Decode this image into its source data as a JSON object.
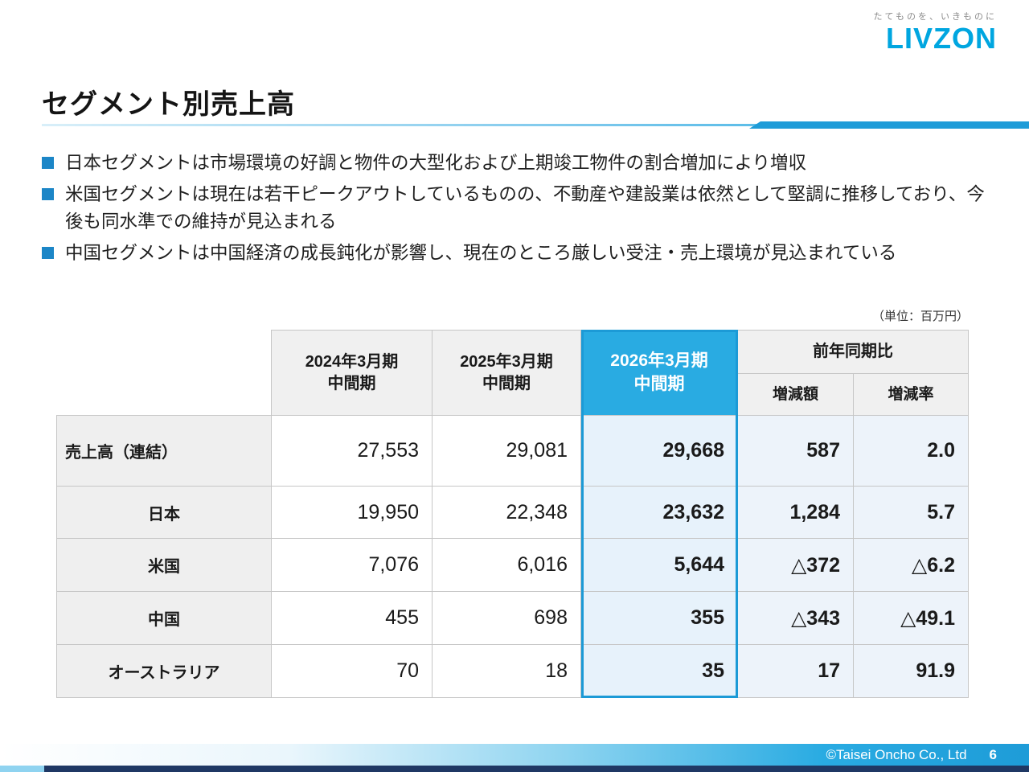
{
  "logo": {
    "tagline": "たてものを、いきものに",
    "brand": "LIVZON"
  },
  "title": "セグメント別売上高",
  "bullets": [
    "日本セグメントは市場環境の好調と物件の大型化および上期竣工物件の割合増加により増収",
    "米国セグメントは現在は若干ピークアウトしているものの、不動産や建設業は依然として堅調に推移しており、今後も同水準での維持が見込まれる",
    "中国セグメントは中国経済の成長鈍化が影響し、現在のところ厳しい受注・売上環境が見込まれている"
  ],
  "unit_note": "（単位：百万円）",
  "table": {
    "headers": {
      "fy2024": "2024年3月期\n中間期",
      "fy2025": "2025年3月期\n中間期",
      "fy2026": "2026年3月期\n中間期",
      "yoy": "前年同期比",
      "yoy_amount": "増減額",
      "yoy_rate": "増減率"
    },
    "rows": [
      {
        "label": "売上高（連結）",
        "fy2024": "27,553",
        "fy2025": "29,081",
        "fy2026": "29,668",
        "amount": "587",
        "rate": "2.0"
      },
      {
        "label": "日本",
        "fy2024": "19,950",
        "fy2025": "22,348",
        "fy2026": "23,632",
        "amount": "1,284",
        "rate": "5.7"
      },
      {
        "label": "米国",
        "fy2024": "7,076",
        "fy2025": "6,016",
        "fy2026": "5,644",
        "amount": "△372",
        "rate": "△6.2"
      },
      {
        "label": "中国",
        "fy2024": "455",
        "fy2025": "698",
        "fy2026": "355",
        "amount": "△343",
        "rate": "△49.1"
      },
      {
        "label": "オーストラリア",
        "fy2024": "70",
        "fy2025": "18",
        "fy2026": "35",
        "amount": "17",
        "rate": "91.9"
      }
    ]
  },
  "footer": {
    "copyright": "©Taisei Oncho Co., Ltd",
    "page": "6"
  },
  "colors": {
    "accent": "#29ABE2",
    "bullet_marker": "#1C86C7",
    "navy": "#1F3864"
  }
}
